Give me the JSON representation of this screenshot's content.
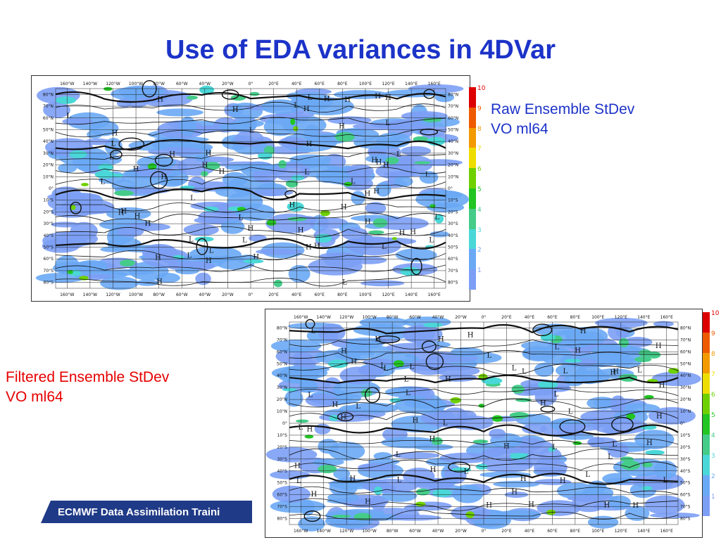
{
  "slide": {
    "title": "Use of EDA variances in 4DVar",
    "footer": "ECMWF Data Assimilation Traini"
  },
  "captions": {
    "raw": {
      "line1": "Raw Ensemble StDev",
      "line2": "VO ml64",
      "color": "#1c33c8"
    },
    "filtered": {
      "line1": "Filtered Ensemble StDev",
      "line2": "VO ml64",
      "color": "#e60000"
    }
  },
  "map": {
    "lon_labels": [
      "160°W",
      "140°W",
      "120°W",
      "100°W",
      "80°W",
      "60°W",
      "40°W",
      "20°W",
      "0°",
      "20°E",
      "40°E",
      "60°E",
      "80°E",
      "100°E",
      "120°E",
      "140°E",
      "160°E"
    ],
    "lat_labels": [
      "80°N",
      "70°N",
      "60°N",
      "50°N",
      "40°N",
      "30°N",
      "20°N",
      "10°N",
      "0°",
      "10°S",
      "20°S",
      "30°S",
      "40°S",
      "50°S",
      "60°S",
      "70°S",
      "80°S"
    ],
    "pressure_marks": [
      "H",
      "L"
    ]
  },
  "colorbar": {
    "levels": [
      "10",
      "9",
      "8",
      "7",
      "6",
      "5",
      "4",
      "3",
      "2",
      "1"
    ],
    "colors": [
      "#dd0000",
      "#ee5a00",
      "#f29a00",
      "#eedd00",
      "#6fd000",
      "#22c522",
      "#44cc88",
      "#4ad7d7",
      "#6aa9f5",
      "#7c9ef5"
    ]
  }
}
